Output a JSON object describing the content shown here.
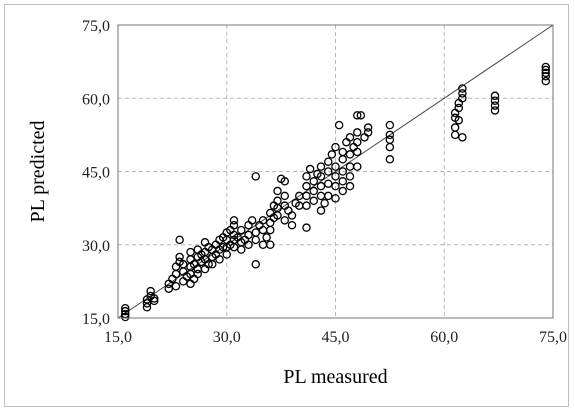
{
  "chart_data": {
    "type": "scatter",
    "title": "",
    "xlabel": "PL measured",
    "ylabel": "PL predicted",
    "xlim": [
      15,
      75
    ],
    "ylim": [
      15,
      75
    ],
    "xticks": [
      "15,0",
      "30,0",
      "45,0",
      "60,0",
      "75,0"
    ],
    "yticks": [
      "15,0",
      "30,0",
      "45,0",
      "60,0",
      "75,0"
    ],
    "tick_values": [
      15,
      30,
      45,
      60,
      75
    ],
    "grid": true,
    "reference_line": {
      "from": [
        15,
        15
      ],
      "to": [
        75,
        75
      ]
    },
    "marker": "open-circle",
    "series": [
      {
        "points": [
          [
            16,
            15.2
          ],
          [
            16,
            15.8
          ],
          [
            16,
            16.4
          ],
          [
            16,
            17.0
          ],
          [
            19,
            17.2
          ],
          [
            19,
            18.0
          ],
          [
            19,
            18.8
          ],
          [
            19.5,
            19.5
          ],
          [
            19.5,
            20.5
          ],
          [
            20,
            19
          ],
          [
            20,
            18.5
          ],
          [
            22,
            21
          ],
          [
            22,
            22
          ],
          [
            22.5,
            23
          ],
          [
            23,
            21.5
          ],
          [
            23,
            24
          ],
          [
            23,
            25.5
          ],
          [
            23.5,
            26.5
          ],
          [
            23.5,
            27.5
          ],
          [
            23.5,
            31
          ],
          [
            24,
            22.5
          ],
          [
            24,
            24.5
          ],
          [
            24,
            26
          ],
          [
            24.5,
            23.5
          ],
          [
            25,
            22
          ],
          [
            25,
            24
          ],
          [
            25,
            25.5
          ],
          [
            25,
            27
          ],
          [
            25,
            28.5
          ],
          [
            25.5,
            23
          ],
          [
            25.5,
            26
          ],
          [
            26,
            24
          ],
          [
            26,
            25
          ],
          [
            26,
            27.5
          ],
          [
            26,
            29
          ],
          [
            26.5,
            26.5
          ],
          [
            26.5,
            28
          ],
          [
            27,
            25
          ],
          [
            27,
            27
          ],
          [
            27,
            28.5
          ],
          [
            27,
            30.5
          ],
          [
            27.5,
            26
          ],
          [
            27.5,
            29.5
          ],
          [
            28,
            26
          ],
          [
            28,
            27.5
          ],
          [
            28,
            29
          ],
          [
            28.5,
            28
          ],
          [
            28.5,
            30
          ],
          [
            29,
            27
          ],
          [
            29,
            29
          ],
          [
            29,
            31
          ],
          [
            29.5,
            29.5
          ],
          [
            29.5,
            31.5
          ],
          [
            30,
            28
          ],
          [
            30,
            29.5
          ],
          [
            30,
            31
          ],
          [
            30,
            32.5
          ],
          [
            30.5,
            30
          ],
          [
            30.5,
            33
          ],
          [
            31,
            29.5
          ],
          [
            31,
            31
          ],
          [
            31,
            32
          ],
          [
            31,
            34
          ],
          [
            31,
            35
          ],
          [
            31.5,
            31.5
          ],
          [
            32,
            29
          ],
          [
            32,
            30.5
          ],
          [
            32,
            33
          ],
          [
            32.5,
            31
          ],
          [
            33,
            30
          ],
          [
            33,
            32
          ],
          [
            33,
            34
          ],
          [
            33.5,
            35
          ],
          [
            34,
            26
          ],
          [
            34,
            31
          ],
          [
            34,
            32.5
          ],
          [
            34,
            44
          ],
          [
            34.5,
            34
          ],
          [
            35,
            30
          ],
          [
            35,
            33
          ],
          [
            35,
            35
          ],
          [
            35.5,
            31.5
          ],
          [
            36,
            30
          ],
          [
            36,
            33
          ],
          [
            36,
            34.5
          ],
          [
            36,
            36.5
          ],
          [
            36.5,
            35.5
          ],
          [
            36.5,
            38
          ],
          [
            37,
            36
          ],
          [
            37,
            37.5
          ],
          [
            37,
            39
          ],
          [
            37,
            41
          ],
          [
            37.5,
            43.5
          ],
          [
            38,
            35
          ],
          [
            38,
            38
          ],
          [
            38,
            40
          ],
          [
            38,
            43
          ],
          [
            38.5,
            37
          ],
          [
            39,
            34
          ],
          [
            39,
            36
          ],
          [
            39.5,
            38.5
          ],
          [
            40,
            38
          ],
          [
            40,
            40
          ],
          [
            41,
            33.5
          ],
          [
            41,
            38
          ],
          [
            41,
            40
          ],
          [
            41,
            42
          ],
          [
            41,
            44
          ],
          [
            41.5,
            45.5
          ],
          [
            42,
            39
          ],
          [
            42,
            41
          ],
          [
            42,
            43
          ],
          [
            42.5,
            44.5
          ],
          [
            43,
            37
          ],
          [
            43,
            40
          ],
          [
            43,
            42
          ],
          [
            43,
            44
          ],
          [
            43,
            46
          ],
          [
            43.5,
            38.5
          ],
          [
            44,
            40
          ],
          [
            44,
            42.5
          ],
          [
            44,
            45
          ],
          [
            44,
            47
          ],
          [
            44.5,
            48.5
          ],
          [
            45,
            39.5
          ],
          [
            45,
            42
          ],
          [
            45,
            44
          ],
          [
            45,
            46
          ],
          [
            45,
            50
          ],
          [
            45.5,
            54.5
          ],
          [
            46,
            41
          ],
          [
            46,
            43
          ],
          [
            46,
            45
          ],
          [
            46,
            47.5
          ],
          [
            46,
            49
          ],
          [
            46.5,
            51
          ],
          [
            47,
            42
          ],
          [
            47,
            44
          ],
          [
            47,
            46
          ],
          [
            47,
            48.5
          ],
          [
            47,
            52
          ],
          [
            47.5,
            50
          ],
          [
            48,
            46
          ],
          [
            48,
            49
          ],
          [
            48,
            51
          ],
          [
            48,
            53
          ],
          [
            48,
            56.5
          ],
          [
            48.5,
            56.5
          ],
          [
            49,
            52
          ],
          [
            49.5,
            53
          ],
          [
            49.5,
            54
          ],
          [
            52.5,
            47.5
          ],
          [
            52.5,
            50
          ],
          [
            52.5,
            51.5
          ],
          [
            52.5,
            52.5
          ],
          [
            52.5,
            54.5
          ],
          [
            61.5,
            52.5
          ],
          [
            61.5,
            54
          ],
          [
            61.5,
            56
          ],
          [
            61.5,
            57
          ],
          [
            62,
            58
          ],
          [
            62,
            59
          ],
          [
            62,
            55.5
          ],
          [
            62.5,
            52
          ],
          [
            62.5,
            60
          ],
          [
            62.5,
            61
          ],
          [
            62.5,
            62
          ],
          [
            67,
            57.5
          ],
          [
            67,
            58.5
          ],
          [
            67,
            59.5
          ],
          [
            67,
            60.5
          ],
          [
            74,
            63.5
          ],
          [
            74,
            64.5
          ],
          [
            74,
            65.2
          ],
          [
            74,
            65.8
          ],
          [
            74,
            66.4
          ]
        ]
      }
    ]
  }
}
